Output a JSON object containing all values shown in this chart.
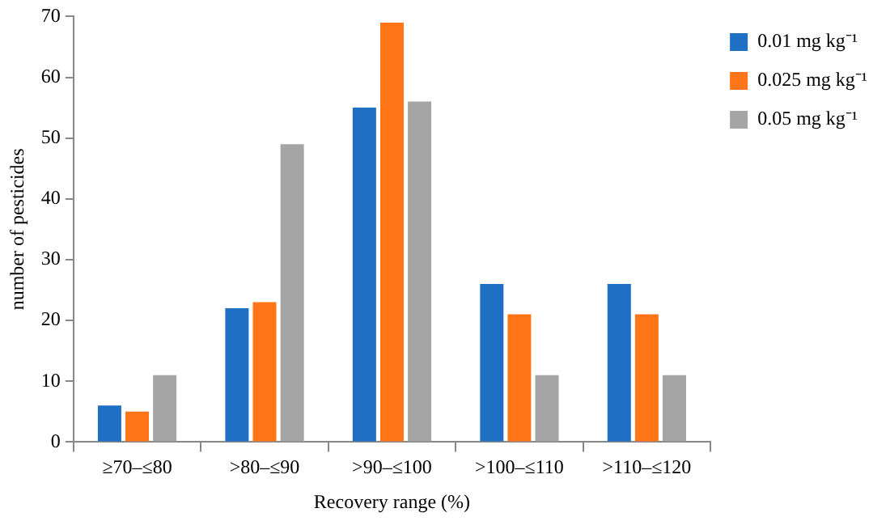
{
  "chart_data": {
    "type": "bar",
    "xlabel": "Recovery range (%)",
    "ylabel": "number of pesticides",
    "categories": [
      "≥70–≤80",
      ">80–≤90",
      ">90–≤100",
      ">100–≤110",
      ">110–≤120"
    ],
    "series": [
      {
        "name": "0.01 mg kg⁻¹",
        "color": "#1f6fc5",
        "values": [
          6,
          22,
          55,
          26,
          26
        ]
      },
      {
        "name": "0.025 mg kg⁻¹",
        "color": "#ff7518",
        "values": [
          5,
          23,
          69,
          21,
          21
        ]
      },
      {
        "name": "0.05 mg kg⁻¹",
        "color": "#a5a5a5",
        "values": [
          11,
          49,
          56,
          11,
          11
        ]
      }
    ],
    "ylim": [
      0,
      70
    ],
    "yticks": [
      0,
      10,
      20,
      30,
      40,
      50,
      60,
      70
    ],
    "grid": false,
    "legend": "top right"
  }
}
